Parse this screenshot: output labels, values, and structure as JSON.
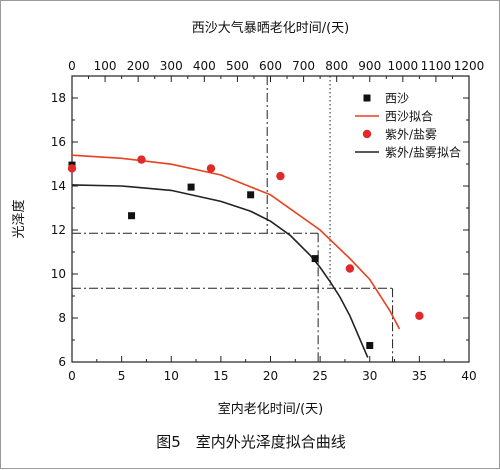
{
  "chart_data": {
    "type": "scatter",
    "top_axis": {
      "label": "西沙大气暴晒老化时间/(天)",
      "ticks": [
        0,
        100,
        200,
        300,
        400,
        500,
        600,
        700,
        800,
        900,
        1000,
        1100,
        1200
      ],
      "range": [
        0,
        1200
      ]
    },
    "x_axis": {
      "label": "室内老化时间/(天)",
      "ticks": [
        0,
        5,
        10,
        15,
        20,
        25,
        30,
        35,
        40
      ],
      "range": [
        0,
        40
      ]
    },
    "y_axis": {
      "label": "光泽度",
      "ticks": [
        6,
        8,
        10,
        12,
        14,
        16,
        18
      ],
      "range": [
        6,
        19
      ]
    },
    "series": [
      {
        "name": "西沙",
        "kind": "points",
        "marker": "square",
        "color": "#111111",
        "points": [
          [
            0,
            14.95
          ],
          [
            6,
            12.65
          ],
          [
            12,
            13.95
          ],
          [
            18,
            13.6
          ],
          [
            24.5,
            10.7
          ],
          [
            30,
            6.75
          ]
        ]
      },
      {
        "name": "西沙拟合",
        "kind": "fit",
        "color": "#e8411e",
        "points": [
          [
            0,
            15.4
          ],
          [
            5,
            15.26
          ],
          [
            10,
            14.99
          ],
          [
            15,
            14.5
          ],
          [
            20,
            13.6
          ],
          [
            25,
            12.0
          ],
          [
            28,
            10.7
          ],
          [
            30,
            9.75
          ],
          [
            32,
            8.35
          ],
          [
            33,
            7.5
          ]
        ]
      },
      {
        "name": "紫外/盐雾",
        "kind": "points",
        "marker": "circle",
        "color": "#e02a2a",
        "points": [
          [
            0,
            14.8
          ],
          [
            7,
            15.2
          ],
          [
            14,
            14.8
          ],
          [
            21,
            14.45
          ],
          [
            28,
            10.25
          ],
          [
            35,
            8.1
          ]
        ]
      },
      {
        "name": "紫外/盐雾拟合",
        "kind": "fit",
        "color": "#222222",
        "points": [
          [
            0,
            14.05
          ],
          [
            5,
            14.0
          ],
          [
            10,
            13.8
          ],
          [
            15,
            13.3
          ],
          [
            18,
            12.85
          ],
          [
            20,
            12.4
          ],
          [
            22,
            11.75
          ],
          [
            24,
            10.85
          ],
          [
            25,
            10.3
          ],
          [
            26,
            9.65
          ],
          [
            27,
            8.95
          ],
          [
            28,
            8.1
          ],
          [
            29,
            7.05
          ],
          [
            29.8,
            6.2
          ]
        ]
      }
    ],
    "reference_lines": {
      "horizontal": [
        {
          "y": 11.85,
          "x_to": 24.8,
          "style": "dashdot"
        },
        {
          "y": 9.35,
          "x_to": 32.3,
          "style": "dashdot"
        }
      ],
      "vertical_bottom": [
        {
          "x": 24.8,
          "y_to": 11.85,
          "style": "dashdot"
        },
        {
          "x": 32.3,
          "y_to": 9.35,
          "style": "dashdot"
        }
      ],
      "vertical_top": [
        {
          "x_top": 590,
          "y_from": 11.85,
          "style": "dashdot"
        },
        {
          "x_top": 780,
          "y_from": 9.35,
          "style": "dotted"
        }
      ]
    },
    "legend": "top-right",
    "grid": false
  },
  "caption": "图5　室内外光泽度拟合曲线"
}
